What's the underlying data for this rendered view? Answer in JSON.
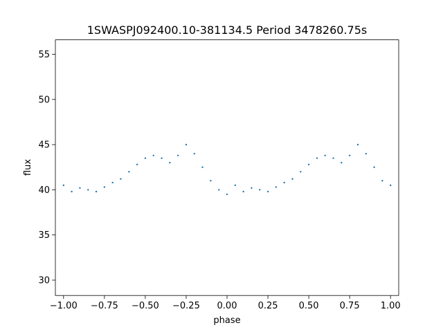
{
  "chart_data": {
    "type": "scatter",
    "title": "1SWASPJ092400.10-381134.5 Period 3478260.75s",
    "xlabel": "phase",
    "ylabel": "flux",
    "xlim": [
      -1.05,
      1.05
    ],
    "ylim": [
      28.3,
      56.6
    ],
    "xticks": [
      -1.0,
      -0.75,
      -0.5,
      -0.25,
      0.0,
      0.25,
      0.5,
      0.75,
      1.0
    ],
    "xtick_labels": [
      "−1.00",
      "−0.75",
      "−0.50",
      "−0.25",
      "0.00",
      "0.25",
      "0.50",
      "0.75",
      "1.00"
    ],
    "yticks": [
      30,
      35,
      40,
      45,
      50,
      55
    ],
    "ytick_labels": [
      "30",
      "35",
      "40",
      "45",
      "50",
      "55"
    ],
    "grid": false,
    "marker_color": "#1f77b4",
    "series": [
      {
        "x": [
          -1.0,
          -0.95,
          -0.9,
          -0.85,
          -0.8,
          -0.75,
          -0.7,
          -0.65,
          -0.6,
          -0.55,
          -0.5,
          -0.45,
          -0.4,
          -0.35,
          -0.3,
          -0.25,
          -0.2,
          -0.15,
          -0.1,
          -0.05,
          0.0,
          0.05,
          0.1,
          0.15,
          0.2,
          0.25,
          0.3,
          0.35,
          0.4,
          0.45,
          0.5,
          0.55,
          0.6,
          0.65,
          0.7,
          0.75,
          0.8,
          0.85,
          0.9,
          0.95,
          1.0
        ],
        "y": [
          40.5,
          39.8,
          40.2,
          40.0,
          39.8,
          40.3,
          40.8,
          41.2,
          42.0,
          42.8,
          43.5,
          43.8,
          43.5,
          43.0,
          43.8,
          45.0,
          44.0,
          42.5,
          41.0,
          40.0,
          39.5,
          40.5,
          39.8,
          40.2,
          40.0,
          39.8,
          40.3,
          40.8,
          41.2,
          42.0,
          42.8,
          43.5,
          43.8,
          43.5,
          43.0,
          43.8,
          45.0,
          44.0,
          42.5,
          41.0,
          40.5
        ]
      }
    ]
  }
}
